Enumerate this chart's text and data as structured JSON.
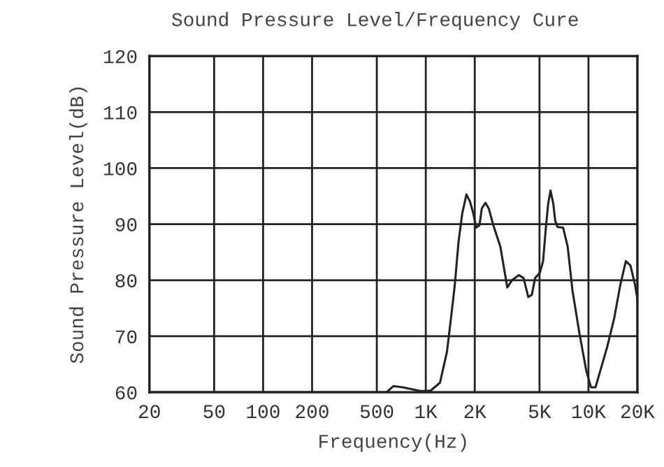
{
  "chart_data": {
    "type": "line",
    "title": "Sound Pressure Level/Frequency Cure",
    "xlabel": "Frequency(Hz)",
    "ylabel": "Sound Pressure Level(dB)",
    "log": "x",
    "grid": true,
    "legend": false,
    "marker": "none",
    "line_style": "solid",
    "xlim": [
      20,
      20000
    ],
    "ylim": [
      60,
      120
    ],
    "xticks": [
      20,
      50,
      100,
      200,
      500,
      {
        "value": 1000,
        "label": "1K"
      },
      {
        "value": 2000,
        "label": "2K"
      },
      {
        "value": 5000,
        "label": "5K"
      },
      {
        "value": 10000,
        "label": "10K"
      },
      {
        "value": 20000,
        "label": "20K"
      }
    ],
    "yticks": [
      60,
      70,
      80,
      90,
      100,
      110,
      120
    ],
    "x": [
      20,
      573,
      632,
      721,
      938,
      1071,
      1222,
      1349,
      1439,
      1507,
      1589,
      1675,
      1778,
      1871,
      1959,
      2041,
      2138,
      2209,
      2329,
      2438,
      2602,
      2873,
      3170,
      3387,
      3735,
      3990,
      4266,
      4490,
      4699,
      5024,
      5261,
      5473,
      5651,
      5846,
      6081,
      6245,
      6455,
      6981,
      7450,
      7962,
      8790,
      9700,
      10360,
      11060,
      11810,
      13040,
      14390,
      15680,
      16970,
      18120,
      19350,
      20000
    ],
    "series": [
      {
        "color": "#222222",
        "values": [
          60,
          60,
          61.1,
          60.9,
          60.2,
          60.3,
          61.7,
          67.2,
          74,
          79.1,
          86.8,
          91.9,
          95.3,
          94,
          91.9,
          89.4,
          89.8,
          92.8,
          93.8,
          92.8,
          89.8,
          86,
          78.7,
          80,
          80.9,
          80.4,
          77,
          77.4,
          80.4,
          81.3,
          83.4,
          89.4,
          93.6,
          96,
          93.6,
          90.6,
          89.5,
          89.4,
          86,
          78.3,
          70.6,
          63.8,
          60.9,
          60.9,
          63.8,
          68.1,
          73.2,
          79.1,
          83.4,
          82.6,
          79.1,
          76.6
        ]
      }
    ]
  }
}
